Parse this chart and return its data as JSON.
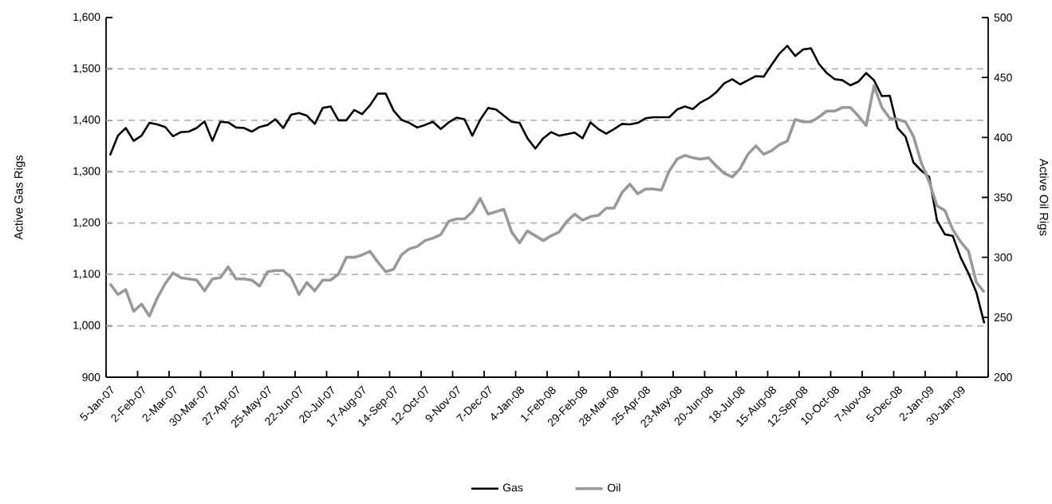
{
  "chart_data": {
    "type": "line",
    "categories": [
      "5-Jan-07",
      null,
      null,
      null,
      "2-Feb-07",
      null,
      null,
      null,
      "2-Mar-07",
      null,
      null,
      null,
      "30-Mar-07",
      null,
      null,
      null,
      "27-Apr-07",
      null,
      null,
      null,
      "25-May-07",
      null,
      null,
      null,
      "22-Jun-07",
      null,
      null,
      null,
      "20-Jul-07",
      null,
      null,
      null,
      "17-Aug-07",
      null,
      null,
      null,
      "14-Sep-07",
      null,
      null,
      null,
      "12-Oct-07",
      null,
      null,
      null,
      "9-Nov-07",
      null,
      null,
      null,
      "7-Dec-07",
      null,
      null,
      null,
      "4-Jan-08",
      null,
      null,
      null,
      "1-Feb-08",
      null,
      null,
      null,
      "29-Feb-08",
      null,
      null,
      null,
      "28-Mar-08",
      null,
      null,
      null,
      "25-Apr-08",
      null,
      null,
      null,
      "23-May-08",
      null,
      null,
      null,
      "20-Jun-08",
      null,
      null,
      null,
      "18-Jul-08",
      null,
      null,
      null,
      "15-Aug-08",
      null,
      null,
      null,
      "12-Sep-08",
      null,
      null,
      null,
      "10-Oct-08",
      null,
      null,
      null,
      "7-Nov-08",
      null,
      null,
      null,
      "5-Dec-08",
      null,
      null,
      null,
      "2-Jan-09",
      null,
      null,
      null,
      "30-Jan-09",
      null,
      null,
      null
    ],
    "series": [
      {
        "name": "Gas",
        "color": "#000000",
        "values": [
          1332,
          1370,
          1385,
          1360,
          1370,
          1395,
          1392,
          1387,
          1369,
          1377,
          1378,
          1385,
          1398,
          1360,
          1397,
          1396,
          1386,
          1385,
          1378,
          1387,
          1391,
          1402,
          1385,
          1411,
          1414,
          1409,
          1393,
          1424,
          1427,
          1400,
          1400,
          1420,
          1412,
          1429,
          1452,
          1452,
          1419,
          1401,
          1395,
          1386,
          1391,
          1397,
          1383,
          1396,
          1405,
          1402,
          1370,
          1401,
          1424,
          1421,
          1409,
          1397,
          1395,
          1365,
          1345,
          1365,
          1377,
          1370,
          1373,
          1376,
          1365,
          1396,
          1383,
          1374,
          1383,
          1393,
          1392,
          1395,
          1404,
          1406,
          1406,
          1406,
          1421,
          1427,
          1422,
          1435,
          1443,
          1455,
          1472,
          1480,
          1470,
          1478,
          1486,
          1485,
          1508,
          1530,
          1545,
          1525,
          1538,
          1540,
          1510,
          1492,
          1480,
          1478,
          1468,
          1475,
          1492,
          1478,
          1447,
          1448,
          1385,
          1368,
          1318,
          1302,
          1290,
          1205,
          1178,
          1175,
          1133,
          1102,
          1065,
          1005
        ]
      },
      {
        "name": "Oil",
        "color": "#999999",
        "axis": "y2",
        "values": [
          278,
          269,
          273,
          255,
          261,
          251,
          266,
          278,
          287,
          283,
          282,
          281,
          272,
          282,
          283,
          292,
          282,
          282,
          281,
          276,
          288,
          289,
          289,
          283,
          269,
          279,
          272,
          281,
          281,
          286,
          300,
          300,
          302,
          305,
          296,
          288,
          290,
          302,
          307,
          309,
          314,
          316,
          319,
          330,
          332,
          332,
          338,
          349,
          336,
          338,
          340,
          321,
          312,
          322,
          318,
          314,
          318,
          321,
          330,
          336,
          331,
          334,
          335,
          341,
          341,
          354,
          361,
          353,
          357,
          357,
          356,
          372,
          382,
          385,
          383,
          382,
          383,
          376,
          370,
          367,
          374,
          386,
          393,
          386,
          389,
          394,
          397,
          415,
          413,
          413,
          417,
          422,
          422,
          425,
          425,
          418,
          410,
          443,
          425,
          416,
          415,
          413,
          401,
          379,
          363,
          343,
          339,
          323,
          313,
          305,
          279,
          271
        ]
      }
    ],
    "ylabel": "Active Gas Rigs",
    "y2label": "Active Oil Rigs",
    "ylim": [
      900,
      1600
    ],
    "yticks": [
      {
        "value": 900,
        "label": "900"
      },
      {
        "value": 1000,
        "label": "1,000"
      },
      {
        "value": 1100,
        "label": "1,100"
      },
      {
        "value": 1200,
        "label": "1,200"
      },
      {
        "value": 1300,
        "label": "1,300"
      },
      {
        "value": 1400,
        "label": "1,400"
      },
      {
        "value": 1500,
        "label": "1,500"
      },
      {
        "value": 1600,
        "label": "1,600"
      }
    ],
    "y2lim": [
      200,
      500
    ],
    "y2ticks": [
      200,
      250,
      300,
      350,
      400,
      450,
      500
    ],
    "grid": "y",
    "legend": "bottom"
  }
}
